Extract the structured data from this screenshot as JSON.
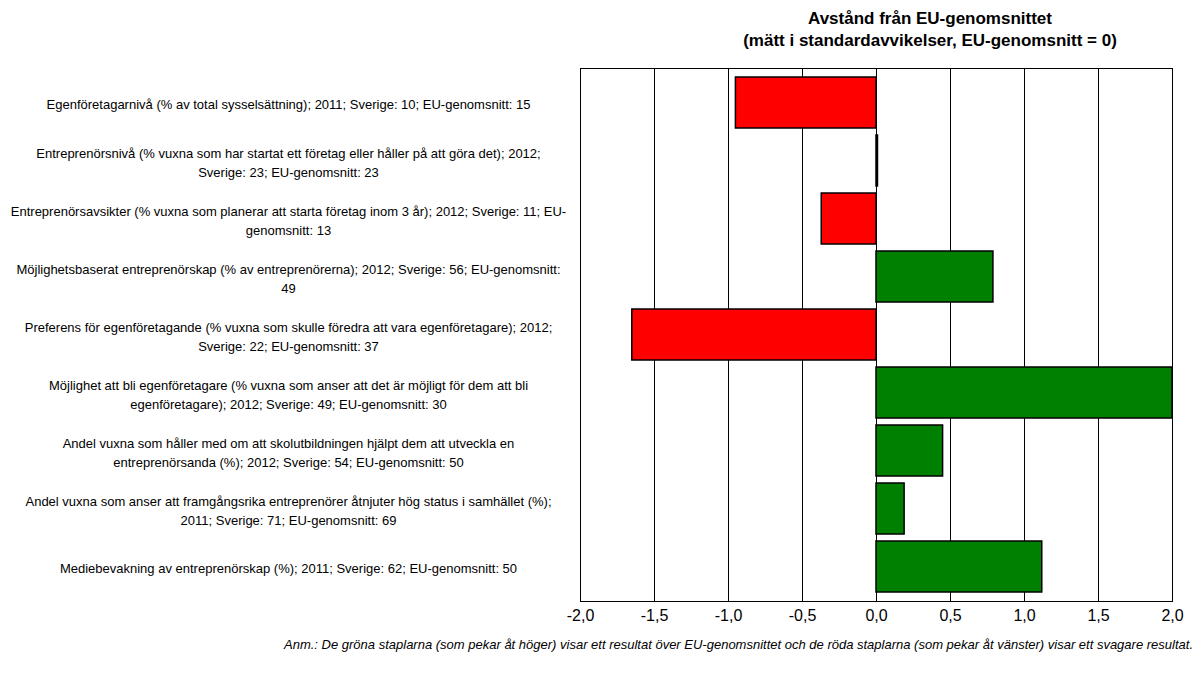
{
  "chart_data": {
    "type": "bar",
    "orientation": "horizontal",
    "title": "Avstånd från EU-genomsnittet",
    "subtitle": "(mätt i standardavvikelser, EU-genomsnitt = 0)",
    "caption": "Anm.: De gröna staplarna (som pekar åt höger) visar ett resultat över EU-genomsnittet och de röda staplarna (som pekar åt vänster) visar ett svagare resultat.",
    "categories": [
      "Egenföretagarnivå (% av total sysselsättning); 2011; Sverige: 10; EU-genomsnitt: 15",
      "Entreprenörsnivå (% vuxna som har startat ett företag eller håller på att göra det); 2012; Sverige: 23; EU-genomsnitt: 23",
      "Entreprenörsavsikter (% vuxna som planerar att starta företag inom 3 år); 2012; Sverige: 11; EU-genomsnitt: 13",
      "Möjlighetsbaserat entreprenörskap (% av entreprenörerna); 2012; Sverige: 56; EU-genomsnitt: 49",
      "Preferens för egenföretagande (% vuxna som skulle föredra att vara egenföretagare); 2012; Sverige: 22; EU-genomsnitt: 37",
      "Möjlighet att bli egenföretagare (% vuxna som anser att det är möjligt för dem att bli egenföretagare); 2012; Sverige: 49; EU-genomsnitt: 30",
      "Andel vuxna som håller med om att skolutbildningen hjälpt dem att utveckla en entreprenörsanda (%); 2012; Sverige: 54; EU-genomsnitt: 50",
      "Andel vuxna som anser att framgångsrika entreprenörer åtnjuter hög status i samhället (%); 2011; Sverige: 71; EU-genomsnitt: 69",
      "Mediebevakning av entreprenörskap (%); 2011; Sverige: 62; EU-genomsnitt: 50"
    ],
    "values": [
      -0.95,
      0.01,
      -0.37,
      0.79,
      -1.65,
      2.0,
      0.45,
      0.19,
      1.12
    ],
    "colors": [
      "#ff0000",
      "#008000",
      "#ff0000",
      "#008000",
      "#ff0000",
      "#008000",
      "#008000",
      "#008000",
      "#008000"
    ],
    "xlim": [
      -2,
      2
    ],
    "xticks": [
      {
        "value": -2,
        "label": "-2,0"
      },
      {
        "value": -1.5,
        "label": "-1,5"
      },
      {
        "value": -1,
        "label": "-1,0"
      },
      {
        "value": -0.5,
        "label": "-0,5"
      },
      {
        "value": 0,
        "label": "0,0"
      },
      {
        "value": 0.5,
        "label": "0,5"
      },
      {
        "value": 1,
        "label": "1,0"
      },
      {
        "value": 1.5,
        "label": "1,5"
      },
      {
        "value": 2,
        "label": "2,0"
      }
    ],
    "grid": true
  }
}
